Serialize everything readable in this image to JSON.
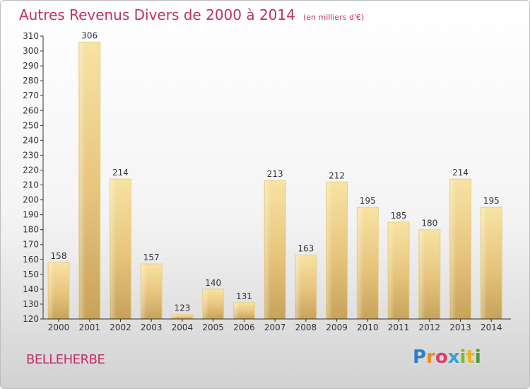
{
  "title": "Autres Revenus Divers de 2000 à 2014",
  "subtitle": "(en milliers d'€)",
  "commune": "BELLEHERBE",
  "logo_text": "Proxiti",
  "colors": {
    "title": "#c0306a",
    "bar_light": "#f6dc94",
    "bar_dark": "#c9a85e",
    "axis": "#333333"
  },
  "chart_data": {
    "type": "bar",
    "categories": [
      "2000",
      "2001",
      "2002",
      "2003",
      "2004",
      "2005",
      "2006",
      "2007",
      "2008",
      "2009",
      "2010",
      "2011",
      "2012",
      "2013",
      "2014"
    ],
    "values": [
      158,
      306,
      214,
      157,
      123,
      140,
      131,
      213,
      163,
      212,
      195,
      185,
      180,
      214,
      195
    ],
    "ylim": [
      120,
      310
    ],
    "yticks": [
      120,
      130,
      140,
      150,
      160,
      170,
      180,
      190,
      200,
      210,
      220,
      230,
      240,
      250,
      260,
      270,
      280,
      290,
      300,
      310
    ],
    "grid": false,
    "data_labels": true
  }
}
